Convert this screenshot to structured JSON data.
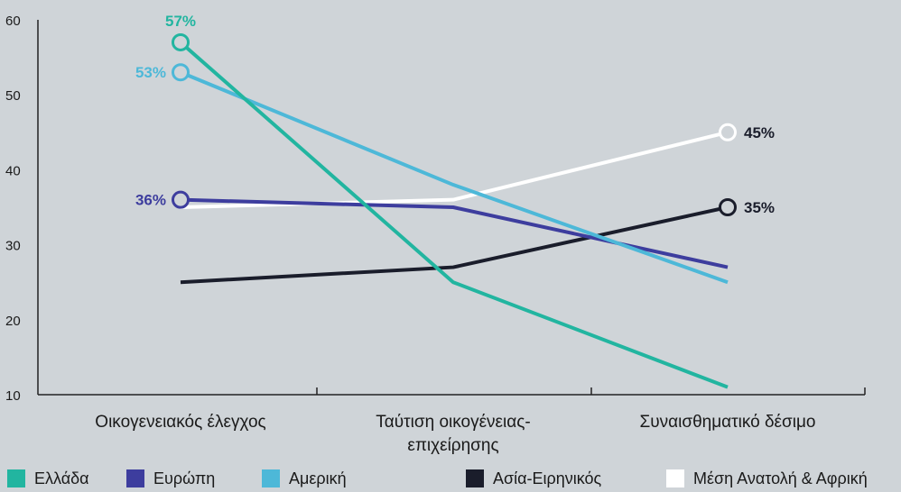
{
  "chart_data": {
    "type": "line",
    "categories": [
      "Οικογενειακός έλεγχος",
      "Ταύτιση οικογένειας-επιχείρησης",
      "Συναισθηματικό δέσιμο"
    ],
    "category_lines": [
      [
        "Οικογενειακός έλεγχος"
      ],
      [
        "Ταύτιση οικογένειας-",
        "επιχείρησης"
      ],
      [
        "Συναισθηματικό δέσιμο"
      ]
    ],
    "ylim": [
      10,
      60
    ],
    "yticks": [
      10,
      20,
      30,
      40,
      50,
      60
    ],
    "series": [
      {
        "name": "Μέση Ανατολή & Αφρική",
        "color": "#ffffff",
        "values": [
          35,
          36,
          45
        ]
      },
      {
        "name": "Ασία-Ειρηνικός",
        "color": "#1a1d2b",
        "values": [
          25,
          27,
          35
        ]
      },
      {
        "name": "Ευρώπη",
        "color": "#3d3d9e",
        "values": [
          36,
          35,
          27
        ]
      },
      {
        "name": "Αμερική",
        "color": "#4db8d8",
        "values": [
          53,
          38,
          25
        ]
      },
      {
        "name": "Ελλάδα",
        "color": "#22b5a0",
        "values": [
          57,
          25,
          11
        ]
      }
    ],
    "data_labels": [
      {
        "series": "Ελλάδα",
        "index": 0,
        "text": "57%"
      },
      {
        "series": "Αμερική",
        "index": 0,
        "text": "53%"
      },
      {
        "series": "Ευρώπη",
        "index": 0,
        "text": "36%"
      },
      {
        "series": "Μέση Ανατολή & Αφρική",
        "index": 2,
        "text": "45%"
      },
      {
        "series": "Ασία-Ειρηνικός",
        "index": 2,
        "text": "35%"
      }
    ],
    "legend": [
      {
        "name": "Ελλάδα",
        "color": "#22b5a0"
      },
      {
        "name": "Ευρώπη",
        "color": "#3d3d9e"
      },
      {
        "name": "Αμερική",
        "color": "#4db8d8"
      },
      {
        "name": "Ασία-Ειρηνικός",
        "color": "#1a1d2b"
      },
      {
        "name": "Μέση Ανατολή & Αφρική",
        "color": "#ffffff"
      }
    ],
    "legend_position": "bottom",
    "grid": false
  }
}
